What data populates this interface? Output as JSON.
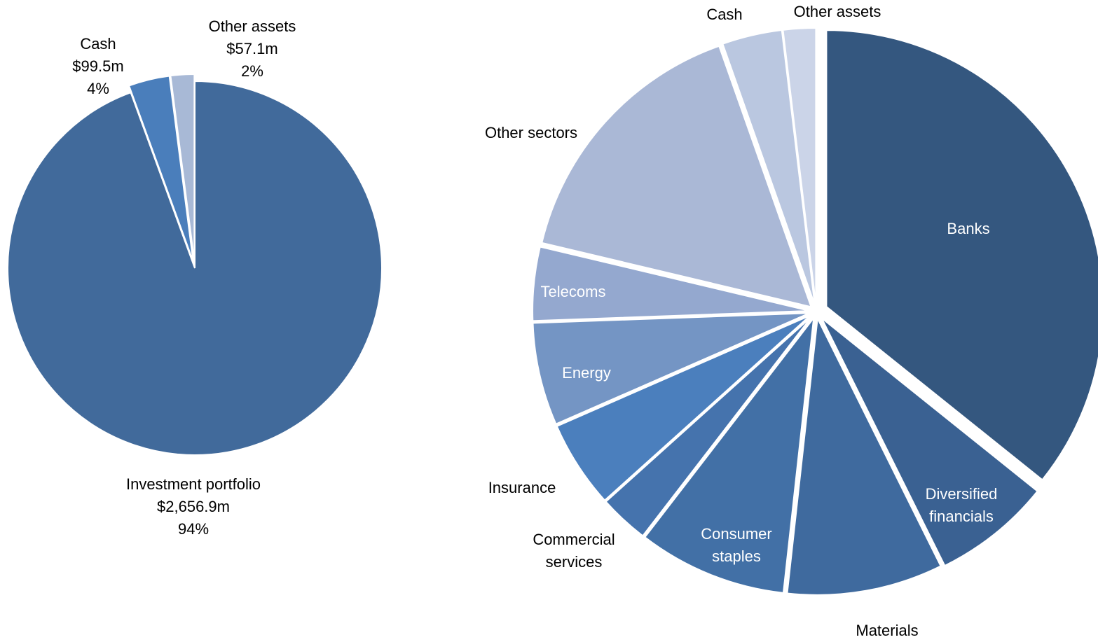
{
  "chart_data": [
    {
      "type": "pie",
      "categories": [
        "Investment portfolio",
        "Cash",
        "Other assets"
      ],
      "values": [
        2656.9,
        99.5,
        57.1
      ],
      "value_labels": [
        "$2,656.9m",
        "$99.5m",
        "$57.1m"
      ],
      "percent_labels": [
        "94%",
        "4%",
        "2%"
      ],
      "colors": [
        "#416a9b",
        "#4a7ebb",
        "#a8b9d6"
      ]
    },
    {
      "type": "pie",
      "categories": [
        "Banks",
        "Diversified financials",
        "Materials",
        "Consumer staples",
        "Commercial services",
        "Insurance",
        "Energy",
        "Telecoms",
        "Other sectors",
        "Cash",
        "Other assets"
      ],
      "values": [
        35.8,
        6.9,
        9.1,
        8.7,
        2.9,
        5.1,
        6.0,
        4.3,
        15.9,
        3.5,
        1.9
      ],
      "colors": [
        "#34577f",
        "#3a6192",
        "#3f6a9e",
        "#4270a6",
        "#4573ad",
        "#4b7fbd",
        "#7495c4",
        "#94a8cf",
        "#aab8d6",
        "#bac7e0",
        "#cbd4e8"
      ]
    }
  ]
}
